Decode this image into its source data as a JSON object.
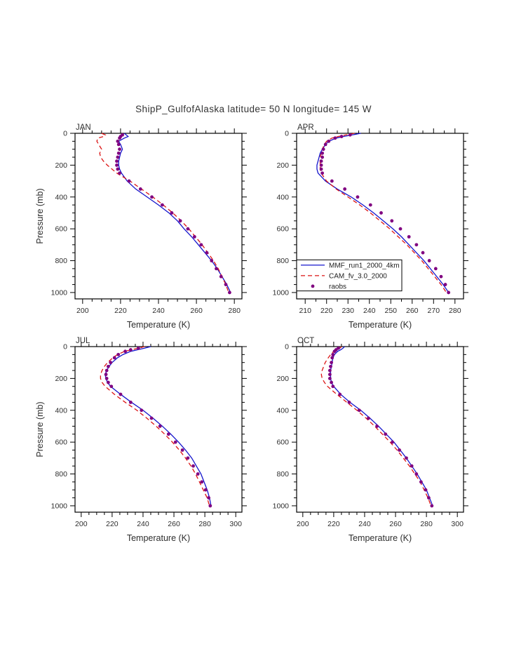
{
  "title": "ShipP_GulfofAlaska  latitude= 50 N longitude= 145 W",
  "xlabel": "Temperature (K)",
  "ylabel": "Pressure (mb)",
  "colors": {
    "mmf": "#1414cc",
    "cam": "#dc1414",
    "raobs": "#800080",
    "text": "#2e2e2e",
    "axis": "#000000",
    "legend_text": "#222222"
  },
  "chart_data": [
    {
      "type": "line",
      "title": "JAN",
      "xlabel": "Temperature (K)",
      "ylabel": "Pressure (mb)",
      "xlim": [
        196,
        284
      ],
      "xticks": [
        200,
        220,
        240,
        260,
        280
      ],
      "x_minor_step": 5,
      "ylim": [
        0,
        1040
      ],
      "yticks": [
        0,
        200,
        400,
        600,
        800,
        1000
      ],
      "y_minor_step": 50,
      "y_axis_inverted": true,
      "show_ylabel": true,
      "show_legend": false,
      "series": [
        {
          "name": "MMF_run1_2000_4km",
          "style": "solid",
          "color": "mmf",
          "pressure": [
            0,
            10,
            20,
            30,
            50,
            70,
            100,
            125,
            150,
            175,
            200,
            225,
            250,
            300,
            350,
            400,
            450,
            500,
            550,
            600,
            650,
            700,
            750,
            800,
            850,
            900,
            950,
            1000
          ],
          "temperature": [
            222,
            223,
            224,
            222,
            219,
            220,
            221,
            220,
            219.5,
            219,
            219,
            219.5,
            220.5,
            223.5,
            228,
            234,
            240,
            245.5,
            250,
            253.5,
            257.5,
            261,
            264.5,
            268,
            271,
            273.5,
            276,
            278
          ]
        },
        {
          "name": "CAM_fv_3.0_2000",
          "style": "dashed",
          "color": "cam",
          "pressure": [
            0,
            10,
            20,
            30,
            50,
            70,
            100,
            125,
            150,
            175,
            200,
            225,
            250,
            300,
            350,
            400,
            450,
            500,
            550,
            600,
            650,
            700,
            750,
            800,
            850,
            900,
            950,
            1000
          ],
          "temperature": [
            210,
            212,
            211,
            208,
            207.5,
            208.5,
            210,
            209,
            209.5,
            211,
            213,
            215.5,
            218,
            225,
            231,
            237,
            242.5,
            247.5,
            252,
            256,
            259.5,
            263,
            266,
            269,
            271.5,
            273.5,
            275.5,
            277
          ]
        },
        {
          "name": "raobs",
          "style": "dots",
          "color": "raobs",
          "pressure": [
            10,
            20,
            30,
            50,
            70,
            100,
            125,
            150,
            175,
            200,
            225,
            250,
            300,
            350,
            400,
            450,
            500,
            550,
            600,
            650,
            700,
            750,
            800,
            850,
            900,
            950,
            1000
          ],
          "temperature": [
            221,
            220,
            219.5,
            218.5,
            219,
            219.5,
            219,
            218.5,
            218,
            218,
            218.5,
            219.5,
            224.5,
            230.5,
            236.5,
            242,
            247,
            251.5,
            255.5,
            259,
            262.5,
            265.5,
            268,
            270.5,
            273,
            275.5,
            277.5
          ]
        }
      ]
    },
    {
      "type": "line",
      "title": "APR",
      "xlabel": "Temperature (K)",
      "ylabel": "Pressure (mb)",
      "xlim": [
        206,
        284
      ],
      "xticks": [
        210,
        220,
        230,
        240,
        250,
        260,
        270,
        280
      ],
      "x_minor_step": 5,
      "ylim": [
        0,
        1040
      ],
      "yticks": [
        0,
        200,
        400,
        600,
        800,
        1000
      ],
      "y_minor_step": 50,
      "y_axis_inverted": true,
      "show_ylabel": false,
      "show_legend": true,
      "series": [
        {
          "name": "MMF_run1_2000_4km",
          "style": "solid",
          "color": "mmf",
          "pressure": [
            0,
            10,
            20,
            30,
            50,
            70,
            100,
            125,
            150,
            175,
            200,
            225,
            250,
            300,
            350,
            400,
            450,
            500,
            550,
            600,
            650,
            700,
            750,
            800,
            850,
            900,
            950,
            1000
          ],
          "temperature": [
            236,
            232,
            228,
            224.5,
            221,
            219.5,
            218,
            217,
            216.5,
            216,
            215.5,
            215.5,
            216,
            219.5,
            225,
            231.5,
            237,
            242,
            246.5,
            251,
            255,
            258.5,
            262,
            265.5,
            268.5,
            271.5,
            274.5,
            277
          ]
        },
        {
          "name": "CAM_fv_3.0_2000",
          "style": "dashed",
          "color": "cam",
          "pressure": [
            0,
            10,
            20,
            30,
            50,
            70,
            100,
            125,
            150,
            175,
            200,
            225,
            250,
            300,
            350,
            400,
            450,
            500,
            550,
            600,
            650,
            700,
            750,
            800,
            850,
            900,
            950,
            1000
          ],
          "temperature": [
            233,
            229,
            225.5,
            222.5,
            220,
            219,
            218,
            217.5,
            217,
            217,
            217,
            217,
            217.5,
            220,
            224.5,
            230,
            235.5,
            240.5,
            245,
            249.5,
            253.5,
            257.5,
            261,
            264.5,
            267.5,
            270.5,
            273.5,
            276
          ]
        },
        {
          "name": "raobs",
          "style": "dots",
          "color": "raobs",
          "pressure": [
            10,
            20,
            30,
            50,
            70,
            100,
            125,
            150,
            175,
            200,
            225,
            250,
            300,
            350,
            400,
            450,
            500,
            550,
            600,
            650,
            700,
            750,
            800,
            850,
            900,
            950,
            1000
          ],
          "temperature": [
            231,
            227,
            224,
            221,
            219.5,
            218.5,
            218,
            218,
            217.5,
            217.5,
            217.5,
            218,
            222.5,
            228.5,
            234.5,
            240.5,
            245.5,
            250.5,
            254.5,
            258.5,
            262,
            265,
            268,
            271,
            273.5,
            275.5,
            277
          ]
        }
      ]
    },
    {
      "type": "line",
      "title": "JUL",
      "xlabel": "Temperature (K)",
      "ylabel": "Pressure (mb)",
      "xlim": [
        196,
        304
      ],
      "xticks": [
        200,
        220,
        240,
        260,
        280,
        300
      ],
      "x_minor_step": 5,
      "ylim": [
        0,
        1040
      ],
      "yticks": [
        0,
        200,
        400,
        600,
        800,
        1000
      ],
      "y_minor_step": 50,
      "y_axis_inverted": true,
      "show_ylabel": true,
      "show_legend": false,
      "series": [
        {
          "name": "MMF_run1_2000_4km",
          "style": "solid",
          "color": "mmf",
          "pressure": [
            0,
            10,
            20,
            30,
            50,
            70,
            100,
            125,
            150,
            175,
            200,
            225,
            250,
            300,
            350,
            400,
            450,
            500,
            550,
            600,
            650,
            700,
            750,
            800,
            850,
            900,
            950,
            1000
          ],
          "temperature": [
            245,
            241,
            236.5,
            232,
            227,
            223.5,
            220,
            218,
            216.5,
            215.5,
            216,
            217,
            219,
            225.5,
            232.5,
            240,
            246.5,
            252.5,
            258,
            263,
            267.5,
            271.5,
            274.5,
            277.5,
            279.5,
            281.5,
            283,
            284
          ]
        },
        {
          "name": "CAM_fv_3.0_2000",
          "style": "dashed",
          "color": "cam",
          "pressure": [
            0,
            10,
            20,
            30,
            50,
            70,
            100,
            125,
            150,
            175,
            200,
            225,
            250,
            300,
            350,
            400,
            450,
            500,
            550,
            600,
            650,
            700,
            750,
            800,
            850,
            900,
            950,
            1000
          ],
          "temperature": [
            241,
            237,
            232.5,
            228,
            223.5,
            220.5,
            217,
            215,
            213.5,
            212.5,
            212.5,
            213.5,
            215.5,
            221.5,
            228.5,
            236,
            242.5,
            248.5,
            254,
            259,
            263.5,
            267.5,
            271,
            274,
            276.5,
            279,
            281.5,
            283
          ]
        },
        {
          "name": "raobs",
          "style": "dots",
          "color": "raobs",
          "pressure": [
            10,
            20,
            30,
            50,
            70,
            100,
            125,
            150,
            175,
            200,
            225,
            250,
            300,
            350,
            400,
            450,
            500,
            550,
            600,
            650,
            700,
            750,
            800,
            850,
            900,
            950,
            1000
          ],
          "temperature": [
            237,
            232,
            228.5,
            224,
            221.5,
            219,
            217.5,
            216.5,
            216,
            216.5,
            217.5,
            219.5,
            225.5,
            232,
            239,
            245.5,
            251,
            256.5,
            261,
            265.5,
            269,
            272.5,
            275.5,
            278,
            280.5,
            282.5,
            283.5
          ]
        }
      ]
    },
    {
      "type": "line",
      "title": "OCT",
      "xlabel": "Temperature (K)",
      "ylabel": "Pressure (mb)",
      "xlim": [
        196,
        304
      ],
      "xticks": [
        200,
        220,
        240,
        260,
        280,
        300
      ],
      "x_minor_step": 5,
      "ylim": [
        0,
        1040
      ],
      "yticks": [
        0,
        200,
        400,
        600,
        800,
        1000
      ],
      "y_minor_step": 50,
      "y_axis_inverted": true,
      "show_ylabel": false,
      "show_legend": false,
      "series": [
        {
          "name": "MMF_run1_2000_4km",
          "style": "solid",
          "color": "mmf",
          "pressure": [
            0,
            10,
            20,
            30,
            50,
            70,
            100,
            125,
            150,
            175,
            200,
            225,
            250,
            300,
            350,
            400,
            450,
            500,
            550,
            600,
            650,
            700,
            750,
            800,
            850,
            900,
            950,
            1000
          ],
          "temperature": [
            227,
            226,
            224.5,
            222.5,
            220.5,
            219.5,
            219,
            218.5,
            218,
            218,
            218,
            218.5,
            220,
            224.5,
            230.5,
            237.5,
            243.5,
            249,
            254,
            259,
            263,
            267,
            270.5,
            274,
            277,
            280,
            282,
            284
          ]
        },
        {
          "name": "CAM_fv_3.0_2000",
          "style": "dashed",
          "color": "cam",
          "pressure": [
            0,
            10,
            20,
            30,
            50,
            70,
            100,
            125,
            150,
            175,
            200,
            225,
            250,
            300,
            350,
            400,
            450,
            500,
            550,
            600,
            650,
            700,
            750,
            800,
            850,
            900,
            950,
            1000
          ],
          "temperature": [
            225,
            224,
            222,
            220,
            218,
            216.5,
            214.5,
            213.5,
            212.5,
            212,
            212.5,
            214,
            216,
            222,
            228.5,
            235,
            241,
            246.5,
            251.5,
            256.5,
            261,
            265,
            269,
            272.5,
            276,
            278.5,
            281,
            283
          ]
        },
        {
          "name": "raobs",
          "style": "dots",
          "color": "raobs",
          "pressure": [
            10,
            20,
            30,
            50,
            70,
            100,
            125,
            150,
            175,
            200,
            225,
            250,
            300,
            350,
            400,
            450,
            500,
            550,
            600,
            650,
            700,
            750,
            800,
            850,
            900,
            950,
            1000
          ],
          "temperature": [
            223,
            221.5,
            220.5,
            219.5,
            219,
            218.5,
            218,
            217.5,
            217.5,
            217.5,
            218.5,
            219.5,
            224,
            230,
            236.5,
            242.5,
            248,
            253.5,
            258,
            262.5,
            267,
            270.5,
            273.5,
            276.5,
            279.5,
            281.5,
            283.5
          ]
        }
      ]
    }
  ]
}
